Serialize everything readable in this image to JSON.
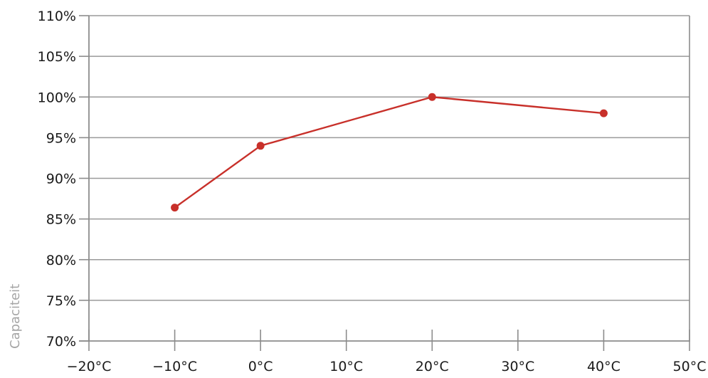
{
  "chart_data": {
    "type": "line",
    "title": "",
    "xlabel": "",
    "ylabel": "Capaciteit",
    "x_ticks": [
      "−20°C",
      "−10°C",
      "0°C",
      "10°C",
      "20°C",
      "30°C",
      "40°C",
      "50°C"
    ],
    "y_ticks": [
      "70%",
      "75%",
      "80%",
      "85%",
      "90%",
      "95%",
      "100%",
      "105%",
      "110%"
    ],
    "xlim": [
      -20,
      50
    ],
    "ylim": [
      70,
      110
    ],
    "x_tick_values": [
      -20,
      -10,
      0,
      10,
      20,
      30,
      40,
      50
    ],
    "y_tick_values": [
      70,
      75,
      80,
      85,
      90,
      95,
      100,
      105,
      110
    ],
    "grid": "horizontal",
    "series": [
      {
        "x": [
          -10,
          0,
          20,
          40
        ],
        "values": [
          86.4,
          94,
          100,
          98
        ]
      }
    ],
    "colors": {
      "line": "#c8302a",
      "axis": "#8c8c8c",
      "grid": "#9a9a9a",
      "ylabel": "#a6a6a6"
    }
  }
}
